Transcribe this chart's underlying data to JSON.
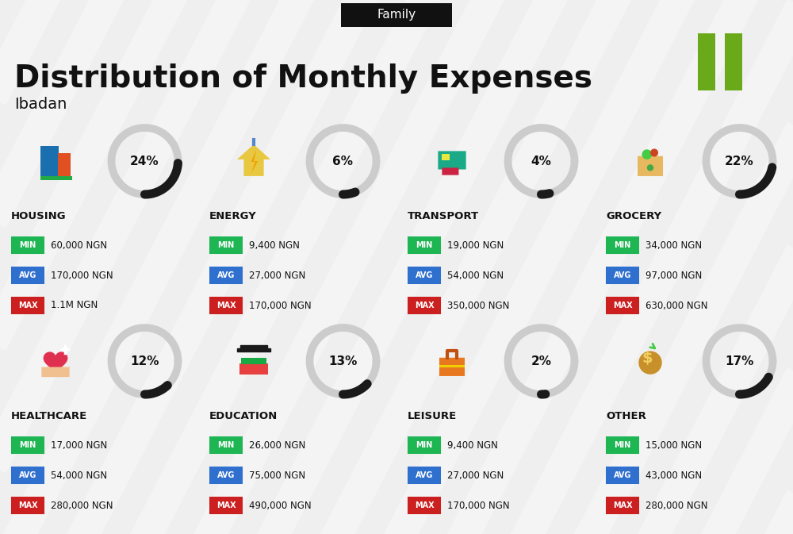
{
  "title": "Distribution of Monthly Expenses",
  "subtitle": "Family",
  "location": "Ibadan",
  "bg_color": "#efefef",
  "title_color": "#111111",
  "subtitle_bg": "#111111",
  "subtitle_text_color": "#ffffff",
  "min_color": "#1eb553",
  "avg_color": "#2f6fce",
  "max_color": "#cc1f1f",
  "accent_green": "#6aaa1a",
  "stripe_color": "#ffffff",
  "donut_bg_color": "#cccccc",
  "donut_fg_color": "#1a1a1a",
  "categories": [
    {
      "name": "HOUSING",
      "pct": 24,
      "min": "60,000 NGN",
      "avg": "170,000 NGN",
      "max": "1.1M NGN",
      "col": 0,
      "row": 0
    },
    {
      "name": "ENERGY",
      "pct": 6,
      "min": "9,400 NGN",
      "avg": "27,000 NGN",
      "max": "170,000 NGN",
      "col": 1,
      "row": 0
    },
    {
      "name": "TRANSPORT",
      "pct": 4,
      "min": "19,000 NGN",
      "avg": "54,000 NGN",
      "max": "350,000 NGN",
      "col": 2,
      "row": 0
    },
    {
      "name": "GROCERY",
      "pct": 22,
      "min": "34,000 NGN",
      "avg": "97,000 NGN",
      "max": "630,000 NGN",
      "col": 3,
      "row": 0
    },
    {
      "name": "HEALTHCARE",
      "pct": 12,
      "min": "17,000 NGN",
      "avg": "54,000 NGN",
      "max": "280,000 NGN",
      "col": 0,
      "row": 1
    },
    {
      "name": "EDUCATION",
      "pct": 13,
      "min": "26,000 NGN",
      "avg": "75,000 NGN",
      "max": "490,000 NGN",
      "col": 1,
      "row": 1
    },
    {
      "name": "LEISURE",
      "pct": 2,
      "min": "9,400 NGN",
      "avg": "27,000 NGN",
      "max": "170,000 NGN",
      "col": 2,
      "row": 1
    },
    {
      "name": "OTHER",
      "pct": 17,
      "min": "15,000 NGN",
      "avg": "43,000 NGN",
      "max": "280,000 NGN",
      "col": 3,
      "row": 1
    }
  ]
}
